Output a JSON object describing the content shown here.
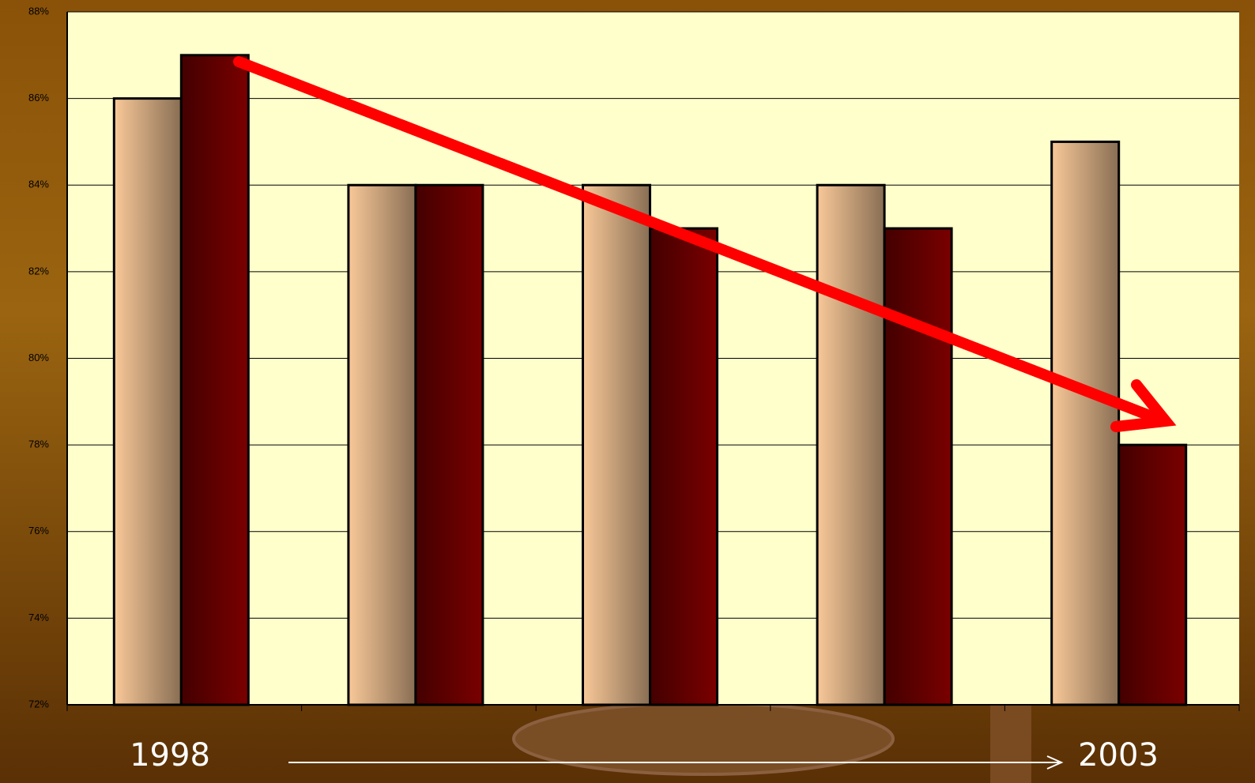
{
  "chart_data": {
    "type": "bar",
    "categories": [
      null,
      null,
      null,
      null,
      null
    ],
    "series": [
      {
        "color": "#f8c898",
        "values": [
          86,
          84,
          84,
          84,
          85
        ]
      },
      {
        "color": "#7a0000",
        "values": [
          87,
          84,
          83,
          83,
          78
        ]
      }
    ],
    "ylim": [
      72,
      88
    ],
    "yticks": [
      {
        "value": 72,
        "label": "72%"
      },
      {
        "value": 74,
        "label": "74%"
      },
      {
        "value": 76,
        "label": "76%"
      },
      {
        "value": 78,
        "label": "78%"
      },
      {
        "value": 80,
        "label": "80%"
      },
      {
        "value": 82,
        "label": "82%"
      },
      {
        "value": 84,
        "label": "84%"
      },
      {
        "value": 86,
        "label": "86%"
      },
      {
        "value": 88,
        "label": "88%"
      }
    ],
    "grid": true,
    "annotations": [
      "1998",
      "2003"
    ]
  }
}
